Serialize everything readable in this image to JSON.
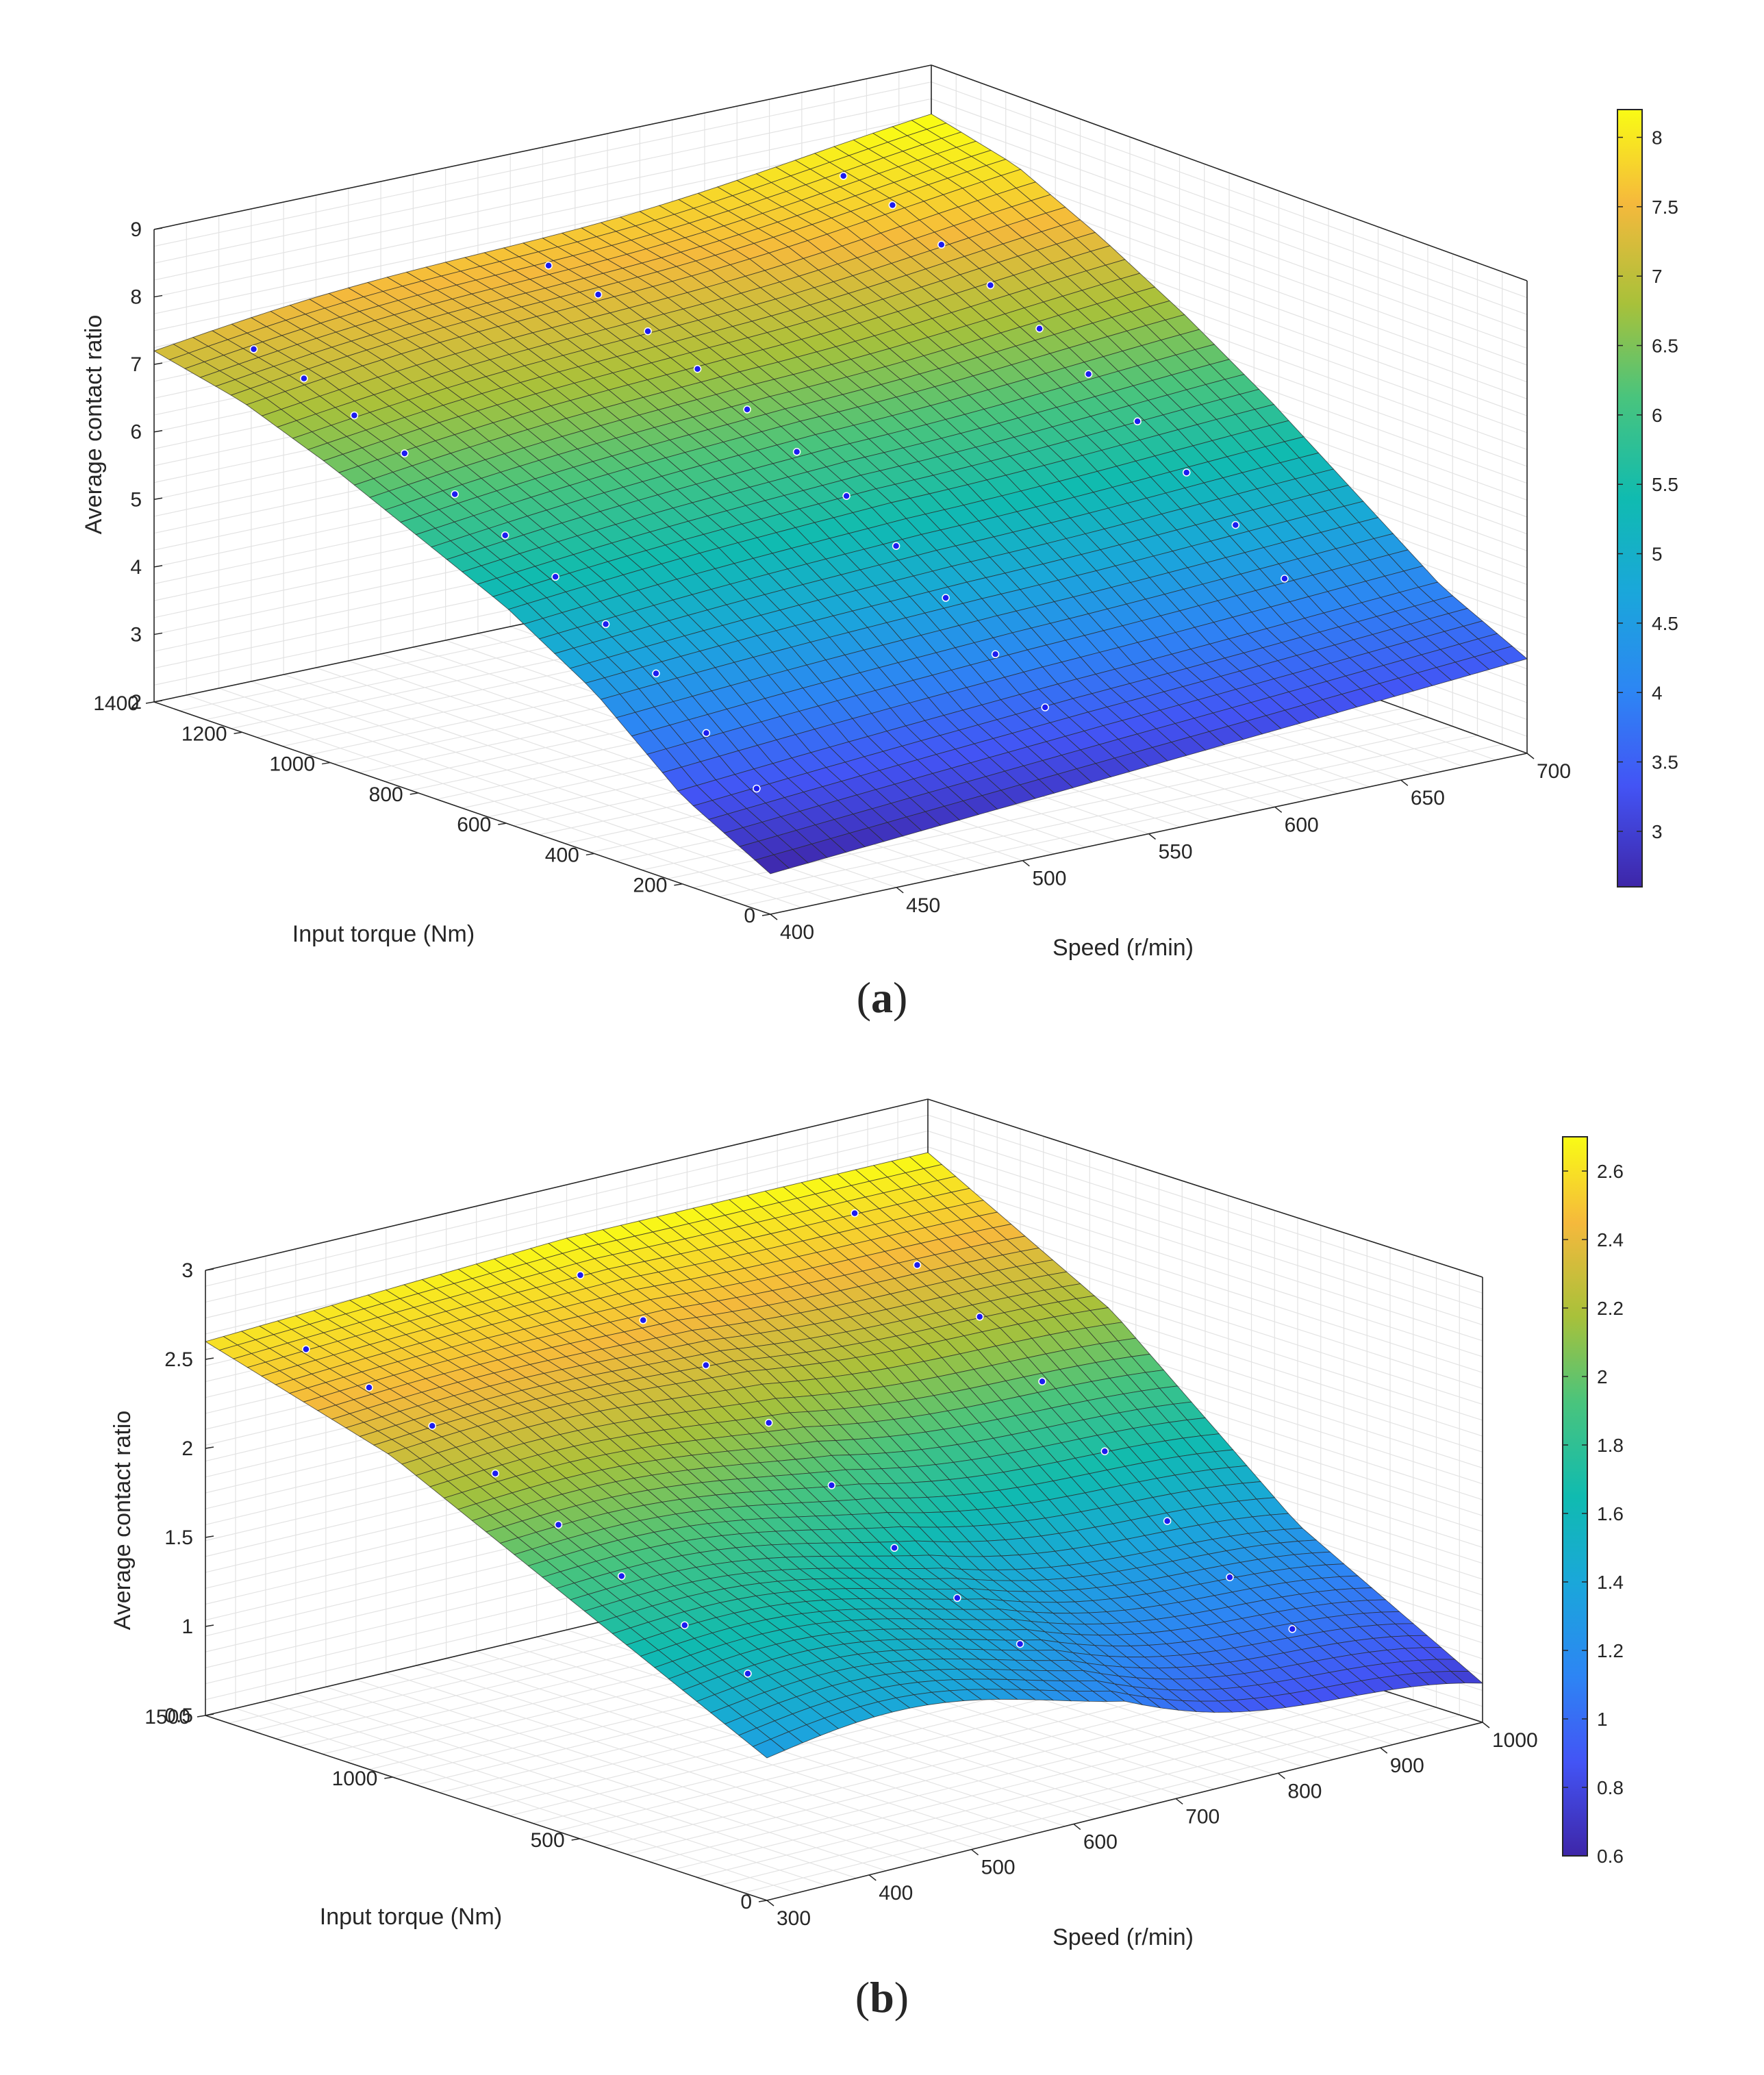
{
  "chart_data": [
    {
      "type": "surface3d",
      "panel_label": "a",
      "zlabel": "Average contact ratio",
      "xlabel": "Speed (r/min)",
      "ylabel": "Input torque (Nm)",
      "x_range": [
        400,
        700
      ],
      "y_range": [
        0,
        1400
      ],
      "z_range": [
        2,
        9
      ],
      "x_ticks": [
        "400",
        "450",
        "500",
        "550",
        "600",
        "650",
        "700"
      ],
      "y_ticks": [
        "0",
        "200",
        "400",
        "600",
        "800",
        "1000",
        "1200",
        "1400"
      ],
      "z_ticks": [
        "2",
        "3",
        "4",
        "5",
        "6",
        "7",
        "8",
        "9"
      ],
      "colorbar": {
        "min": 2.6,
        "max": 8.2,
        "ticks": [
          "3",
          "3.5",
          "4",
          "4.5",
          "5",
          "5.5",
          "6",
          "6.5",
          "7",
          "7.5",
          "8"
        ]
      },
      "surface_corners": {
        "speed400_torque1400": 7.2,
        "speed700_torque1400": 8.2,
        "speed700_torque0": 3.4,
        "speed400_torque0": 2.6
      },
      "surface_series": [
        {
          "name": "speed 400",
          "torque": [
            1400,
            1200,
            1000,
            800,
            600,
            400,
            200,
            0
          ],
          "ratio": [
            7.2,
            6.9,
            6.4,
            5.8,
            5.2,
            4.4,
            3.3,
            2.6
          ]
        },
        {
          "name": "speed 550",
          "torque": [
            1400,
            1200,
            1000,
            800,
            600,
            400,
            200,
            0
          ],
          "ratio": [
            7.7,
            7.4,
            6.9,
            6.3,
            5.6,
            4.7,
            3.7,
            3.0
          ]
        },
        {
          "name": "speed 700",
          "torque": [
            1400,
            1200,
            1000,
            800,
            600,
            400,
            200,
            0
          ],
          "ratio": [
            8.2,
            7.9,
            7.3,
            6.6,
            5.8,
            4.9,
            4.0,
            3.4
          ]
        }
      ],
      "markers_count": 32
    },
    {
      "type": "surface3d",
      "panel_label": "b",
      "zlabel": "Average contact ratio",
      "xlabel": "Speed (r/min)",
      "ylabel": "Input torque (Nm)",
      "x_range": [
        300,
        1000
      ],
      "y_range": [
        0,
        1500
      ],
      "z_range": [
        0.5,
        3
      ],
      "x_ticks": [
        "300",
        "400",
        "500",
        "600",
        "700",
        "800",
        "900",
        "1000"
      ],
      "y_ticks": [
        "0",
        "500",
        "1000",
        "1500"
      ],
      "z_ticks": [
        "0.5",
        "1",
        "1.5",
        "2",
        "2.5",
        "3"
      ],
      "colorbar": {
        "min": 0.6,
        "max": 2.7,
        "ticks": [
          "0.6",
          "0.8",
          "1",
          "1.2",
          "1.4",
          "1.6",
          "1.8",
          "2",
          "2.2",
          "2.4",
          "2.6"
        ]
      },
      "surface_corners": {
        "speed300_torque1500": 2.6,
        "speed1000_torque1500": 2.7,
        "speed1000_torque0": 0.6,
        "speed300_torque0": 1.3
      },
      "surface_series": [
        {
          "name": "speed 300",
          "torque": [
            1500,
            1000,
            500,
            0
          ],
          "ratio": [
            2.6,
            2.3,
            1.8,
            1.3
          ]
        },
        {
          "name": "speed 650",
          "torque": [
            1500,
            1000,
            500,
            0
          ],
          "ratio": [
            2.7,
            2.3,
            1.6,
            1.2
          ]
        },
        {
          "name": "speed 1000",
          "torque": [
            1500,
            1000,
            500,
            0
          ],
          "ratio": [
            2.7,
            2.1,
            1.2,
            0.6
          ]
        }
      ],
      "markers_count": 24
    }
  ],
  "captions": {
    "a": "a",
    "b": "b"
  }
}
